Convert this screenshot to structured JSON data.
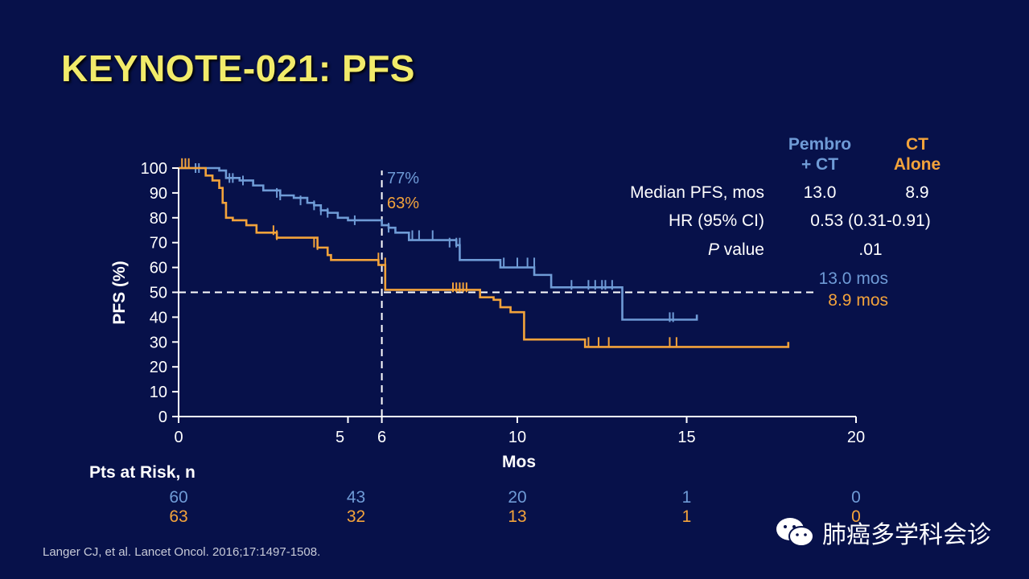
{
  "slide": {
    "title": "KEYNOTE-021: PFS",
    "citation": "Langer CJ, et al. Lancet Oncol. 2016;17:1497-1508.",
    "watermark": "肺癌多学科会诊"
  },
  "colors": {
    "background": "#07114a",
    "pembro": "#6f9bd6",
    "ct": "#f3a33b",
    "title": "#f2eb6a",
    "text": "#ffffff"
  },
  "stats_table": {
    "col_pembro": [
      "Pembro",
      "+ CT"
    ],
    "col_ct": [
      "CT",
      "Alone"
    ],
    "rows": [
      {
        "label": "Median PFS, mos",
        "pembro": "13.0",
        "ct": "8.9",
        "italic_prefix": ""
      },
      {
        "label": "HR (95% CI)",
        "combined": "0.53 (0.31-0.91)",
        "italic_prefix": ""
      },
      {
        "label": " value",
        "combined": ".01",
        "italic_prefix": "P"
      }
    ]
  },
  "chart_data": {
    "type": "line",
    "step": true,
    "xlabel": "Mos",
    "ylabel": "PFS (%)",
    "xlim": [
      0,
      20
    ],
    "ylim": [
      0,
      100
    ],
    "xticks": [
      "0",
      "5",
      "6",
      "10",
      "15",
      "20"
    ],
    "xtick_values": [
      0,
      5,
      6,
      10,
      15,
      20
    ],
    "yticks": [
      "0",
      "10",
      "20",
      "30",
      "40",
      "50",
      "60",
      "70",
      "80",
      "90",
      "100"
    ],
    "ytick_values": [
      0,
      10,
      20,
      30,
      40,
      50,
      60,
      70,
      80,
      90,
      100
    ],
    "reference_lines": {
      "y": 50,
      "x": 6
    },
    "annotations": {
      "pembro_at_6": "77%",
      "ct_at_6": "63%",
      "pembro_median": "13.0 mos",
      "ct_median": "8.9 mos"
    },
    "series": [
      {
        "key": "pembro",
        "color": "#6f9bd6",
        "points": [
          [
            0,
            100
          ],
          [
            1.2,
            99
          ],
          [
            1.4,
            96
          ],
          [
            1.8,
            95
          ],
          [
            2.2,
            93
          ],
          [
            2.5,
            91
          ],
          [
            3.0,
            89
          ],
          [
            3.4,
            88
          ],
          [
            3.8,
            86
          ],
          [
            4.0,
            85
          ],
          [
            4.2,
            83
          ],
          [
            4.4,
            82
          ],
          [
            4.7,
            80
          ],
          [
            5.0,
            79
          ],
          [
            6.0,
            79
          ],
          [
            6.0,
            77
          ],
          [
            6.2,
            76
          ],
          [
            6.4,
            74
          ],
          [
            6.8,
            71
          ],
          [
            8.2,
            69
          ],
          [
            8.3,
            63
          ],
          [
            9.5,
            60
          ],
          [
            10.0,
            60
          ],
          [
            10.5,
            57
          ],
          [
            11.0,
            52
          ],
          [
            13.1,
            52
          ],
          [
            13.1,
            39
          ],
          [
            15.3,
            39
          ],
          [
            15.3,
            41
          ]
        ],
        "censor": [
          [
            0.5,
            100
          ],
          [
            0.6,
            100
          ],
          [
            1.5,
            96
          ],
          [
            1.6,
            96
          ],
          [
            1.9,
            95
          ],
          [
            2.9,
            90
          ],
          [
            3.0,
            89
          ],
          [
            3.6,
            87
          ],
          [
            4.0,
            85
          ],
          [
            4.2,
            83
          ],
          [
            4.4,
            82
          ],
          [
            5.2,
            79
          ],
          [
            6.2,
            76
          ],
          [
            6.9,
            73
          ],
          [
            7.1,
            73
          ],
          [
            7.5,
            73
          ],
          [
            8.0,
            70
          ],
          [
            8.2,
            70
          ],
          [
            8.3,
            70
          ],
          [
            9.6,
            62
          ],
          [
            10.0,
            62
          ],
          [
            10.3,
            62
          ],
          [
            10.5,
            62
          ],
          [
            11.6,
            53
          ],
          [
            12.1,
            53
          ],
          [
            12.3,
            53
          ],
          [
            12.5,
            53
          ],
          [
            12.6,
            53
          ],
          [
            12.8,
            53
          ],
          [
            14.5,
            40
          ],
          [
            14.6,
            40
          ]
        ]
      },
      {
        "key": "ct",
        "color": "#f3a33b",
        "points": [
          [
            0,
            100
          ],
          [
            0.4,
            100
          ],
          [
            0.8,
            97
          ],
          [
            1.0,
            95
          ],
          [
            1.2,
            92
          ],
          [
            1.3,
            86
          ],
          [
            1.4,
            80
          ],
          [
            1.6,
            79
          ],
          [
            2.0,
            77
          ],
          [
            2.3,
            74
          ],
          [
            2.8,
            74
          ],
          [
            2.9,
            72
          ],
          [
            4.0,
            72
          ],
          [
            4.1,
            68
          ],
          [
            4.4,
            65
          ],
          [
            4.5,
            63
          ],
          [
            5.9,
            63
          ],
          [
            5.9,
            61
          ],
          [
            6.1,
            58
          ],
          [
            6.1,
            51
          ],
          [
            8.9,
            51
          ],
          [
            8.9,
            48
          ],
          [
            9.3,
            47
          ],
          [
            9.5,
            44
          ],
          [
            9.8,
            42
          ],
          [
            10.2,
            42
          ],
          [
            10.2,
            31
          ],
          [
            12.0,
            31
          ],
          [
            12.0,
            28
          ],
          [
            18.0,
            28
          ],
          [
            18.0,
            30
          ]
        ],
        "censor": [
          [
            0.1,
            102
          ],
          [
            0.2,
            102
          ],
          [
            0.3,
            102
          ],
          [
            2.8,
            75
          ],
          [
            2.9,
            73
          ],
          [
            4.0,
            70
          ],
          [
            4.1,
            69
          ],
          [
            5.9,
            64
          ],
          [
            6.1,
            62
          ],
          [
            8.1,
            52
          ],
          [
            8.2,
            52
          ],
          [
            8.3,
            52
          ],
          [
            8.4,
            52
          ],
          [
            8.5,
            52
          ],
          [
            12.1,
            30
          ],
          [
            12.4,
            30
          ],
          [
            12.7,
            30
          ],
          [
            14.5,
            30
          ],
          [
            14.7,
            30
          ]
        ]
      }
    ],
    "at_risk": {
      "label": "Pts at Risk, n",
      "times": [
        0,
        5,
        10,
        15,
        20
      ],
      "pembro": [
        "60",
        "43",
        "20",
        "1",
        "0"
      ],
      "ct": [
        "63",
        "32",
        "13",
        "1",
        "0"
      ]
    }
  }
}
